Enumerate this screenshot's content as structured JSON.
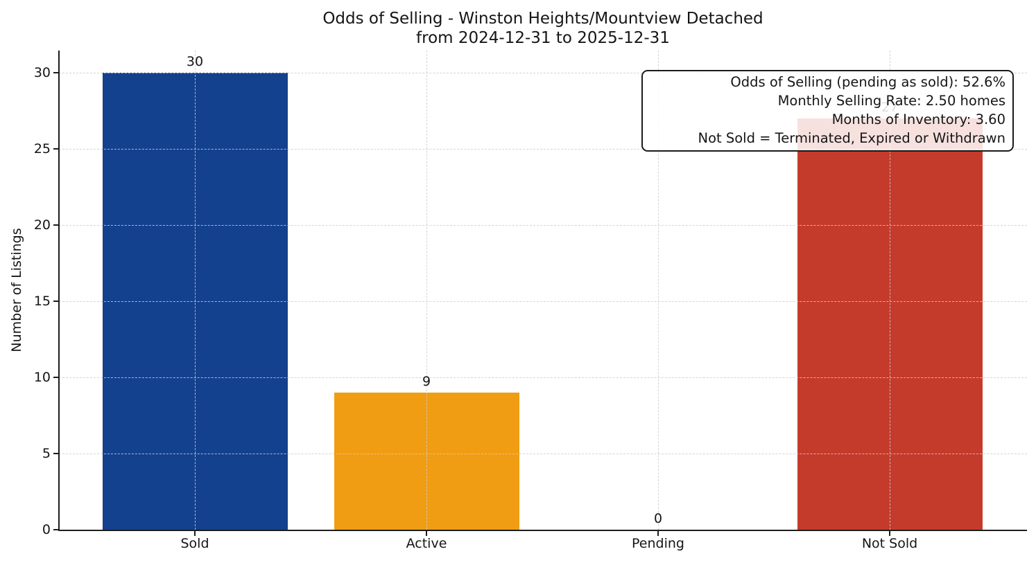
{
  "title": {
    "line1": "Odds of Selling - Winston Heights/Mountview Detached",
    "line2": "from 2024-12-31 to 2025-12-31"
  },
  "axes": {
    "ylabel": "Number of Listings",
    "yticks": [
      0,
      5,
      10,
      15,
      20,
      25,
      30
    ],
    "xticklabels": [
      "Sold",
      "Active",
      "Pending",
      "Not Sold"
    ]
  },
  "annotation": {
    "lines": [
      "Odds of Selling (pending as sold): 52.6%",
      "Monthly Selling Rate: 2.50 homes",
      "Months of Inventory: 3.60",
      "Not Sold = Terminated, Expired or Withdrawn"
    ]
  },
  "chart_data": {
    "type": "bar",
    "title": "Odds of Selling - Winston Heights/Mountview Detached from 2024-12-31 to 2025-12-31",
    "categories": [
      "Sold",
      "Active",
      "Pending",
      "Not Sold"
    ],
    "values": [
      30,
      9,
      0,
      27
    ],
    "bar_labels": [
      "30",
      "9",
      "0",
      "27"
    ],
    "bar_colors": [
      "#14418D",
      "#F09D13",
      null,
      "#C43B2B"
    ],
    "xlabel": "",
    "ylabel": "Number of Listings",
    "ylim": [
      0,
      31.5
    ],
    "yticks": [
      0,
      5,
      10,
      15,
      20,
      25,
      30
    ],
    "grid": true,
    "grid_style": "dashed",
    "legend_position": "upper right",
    "annotations": [
      "Odds of Selling (pending as sold): 52.6%",
      "Monthly Selling Rate: 2.50 homes",
      "Months of Inventory: 3.60",
      "Not Sold = Terminated, Expired or Withdrawn"
    ]
  },
  "colors": {
    "sold": "#14418D",
    "active": "#F09D13",
    "not_sold": "#C43B2B",
    "grid": "#cccccc",
    "spine": "#1c1c1c",
    "text": "#151515",
    "annotation_background": "rgba(255,255,255,0.85)"
  }
}
